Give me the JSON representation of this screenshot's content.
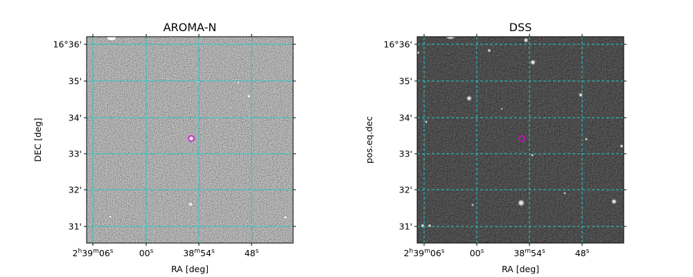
{
  "panels": [
    {
      "title": "AROMA-N",
      "xlabel": "RA [deg]",
      "ylabel": "DEC [deg]",
      "grid_color": "#2ec4c4",
      "grid_style": "solid",
      "background": "noisy-gray",
      "y_ticks": [
        "16°36'",
        "35'",
        "34'",
        "33'",
        "32'",
        "31'"
      ],
      "x_ticks": [
        {
          "main": "2",
          "parts": [
            [
              "h",
              "39"
            ],
            [
              "m",
              "06"
            ],
            [
              "s",
              ""
            ]
          ]
        },
        {
          "main": "00",
          "parts": [
            [
              "s",
              ""
            ]
          ]
        },
        {
          "main": "38",
          "parts": [
            [
              "m",
              "54"
            ],
            [
              "s",
              ""
            ]
          ]
        },
        {
          "main": "48",
          "parts": [
            [
              "s",
              ""
            ]
          ]
        }
      ],
      "marker_color": "#e000e0"
    },
    {
      "title": "DSS",
      "xlabel": "RA [deg]",
      "ylabel": "pos.eq.dec",
      "grid_color": "#19d3d3",
      "grid_style": "dashed",
      "background": "dark",
      "y_ticks": [
        "16°36'",
        "35'",
        "34'",
        "33'",
        "32'",
        "31'"
      ],
      "x_ticks": [
        {
          "main": "2",
          "parts": [
            [
              "h",
              "39"
            ],
            [
              "m",
              "06"
            ],
            [
              "s",
              ""
            ]
          ]
        },
        {
          "main": "00",
          "parts": [
            [
              "s",
              ""
            ]
          ]
        },
        {
          "main": "38",
          "parts": [
            [
              "m",
              "54"
            ],
            [
              "s",
              ""
            ]
          ]
        },
        {
          "main": "48",
          "parts": [
            [
              "s",
              ""
            ]
          ]
        }
      ],
      "marker_color": "#e000e0"
    }
  ]
}
